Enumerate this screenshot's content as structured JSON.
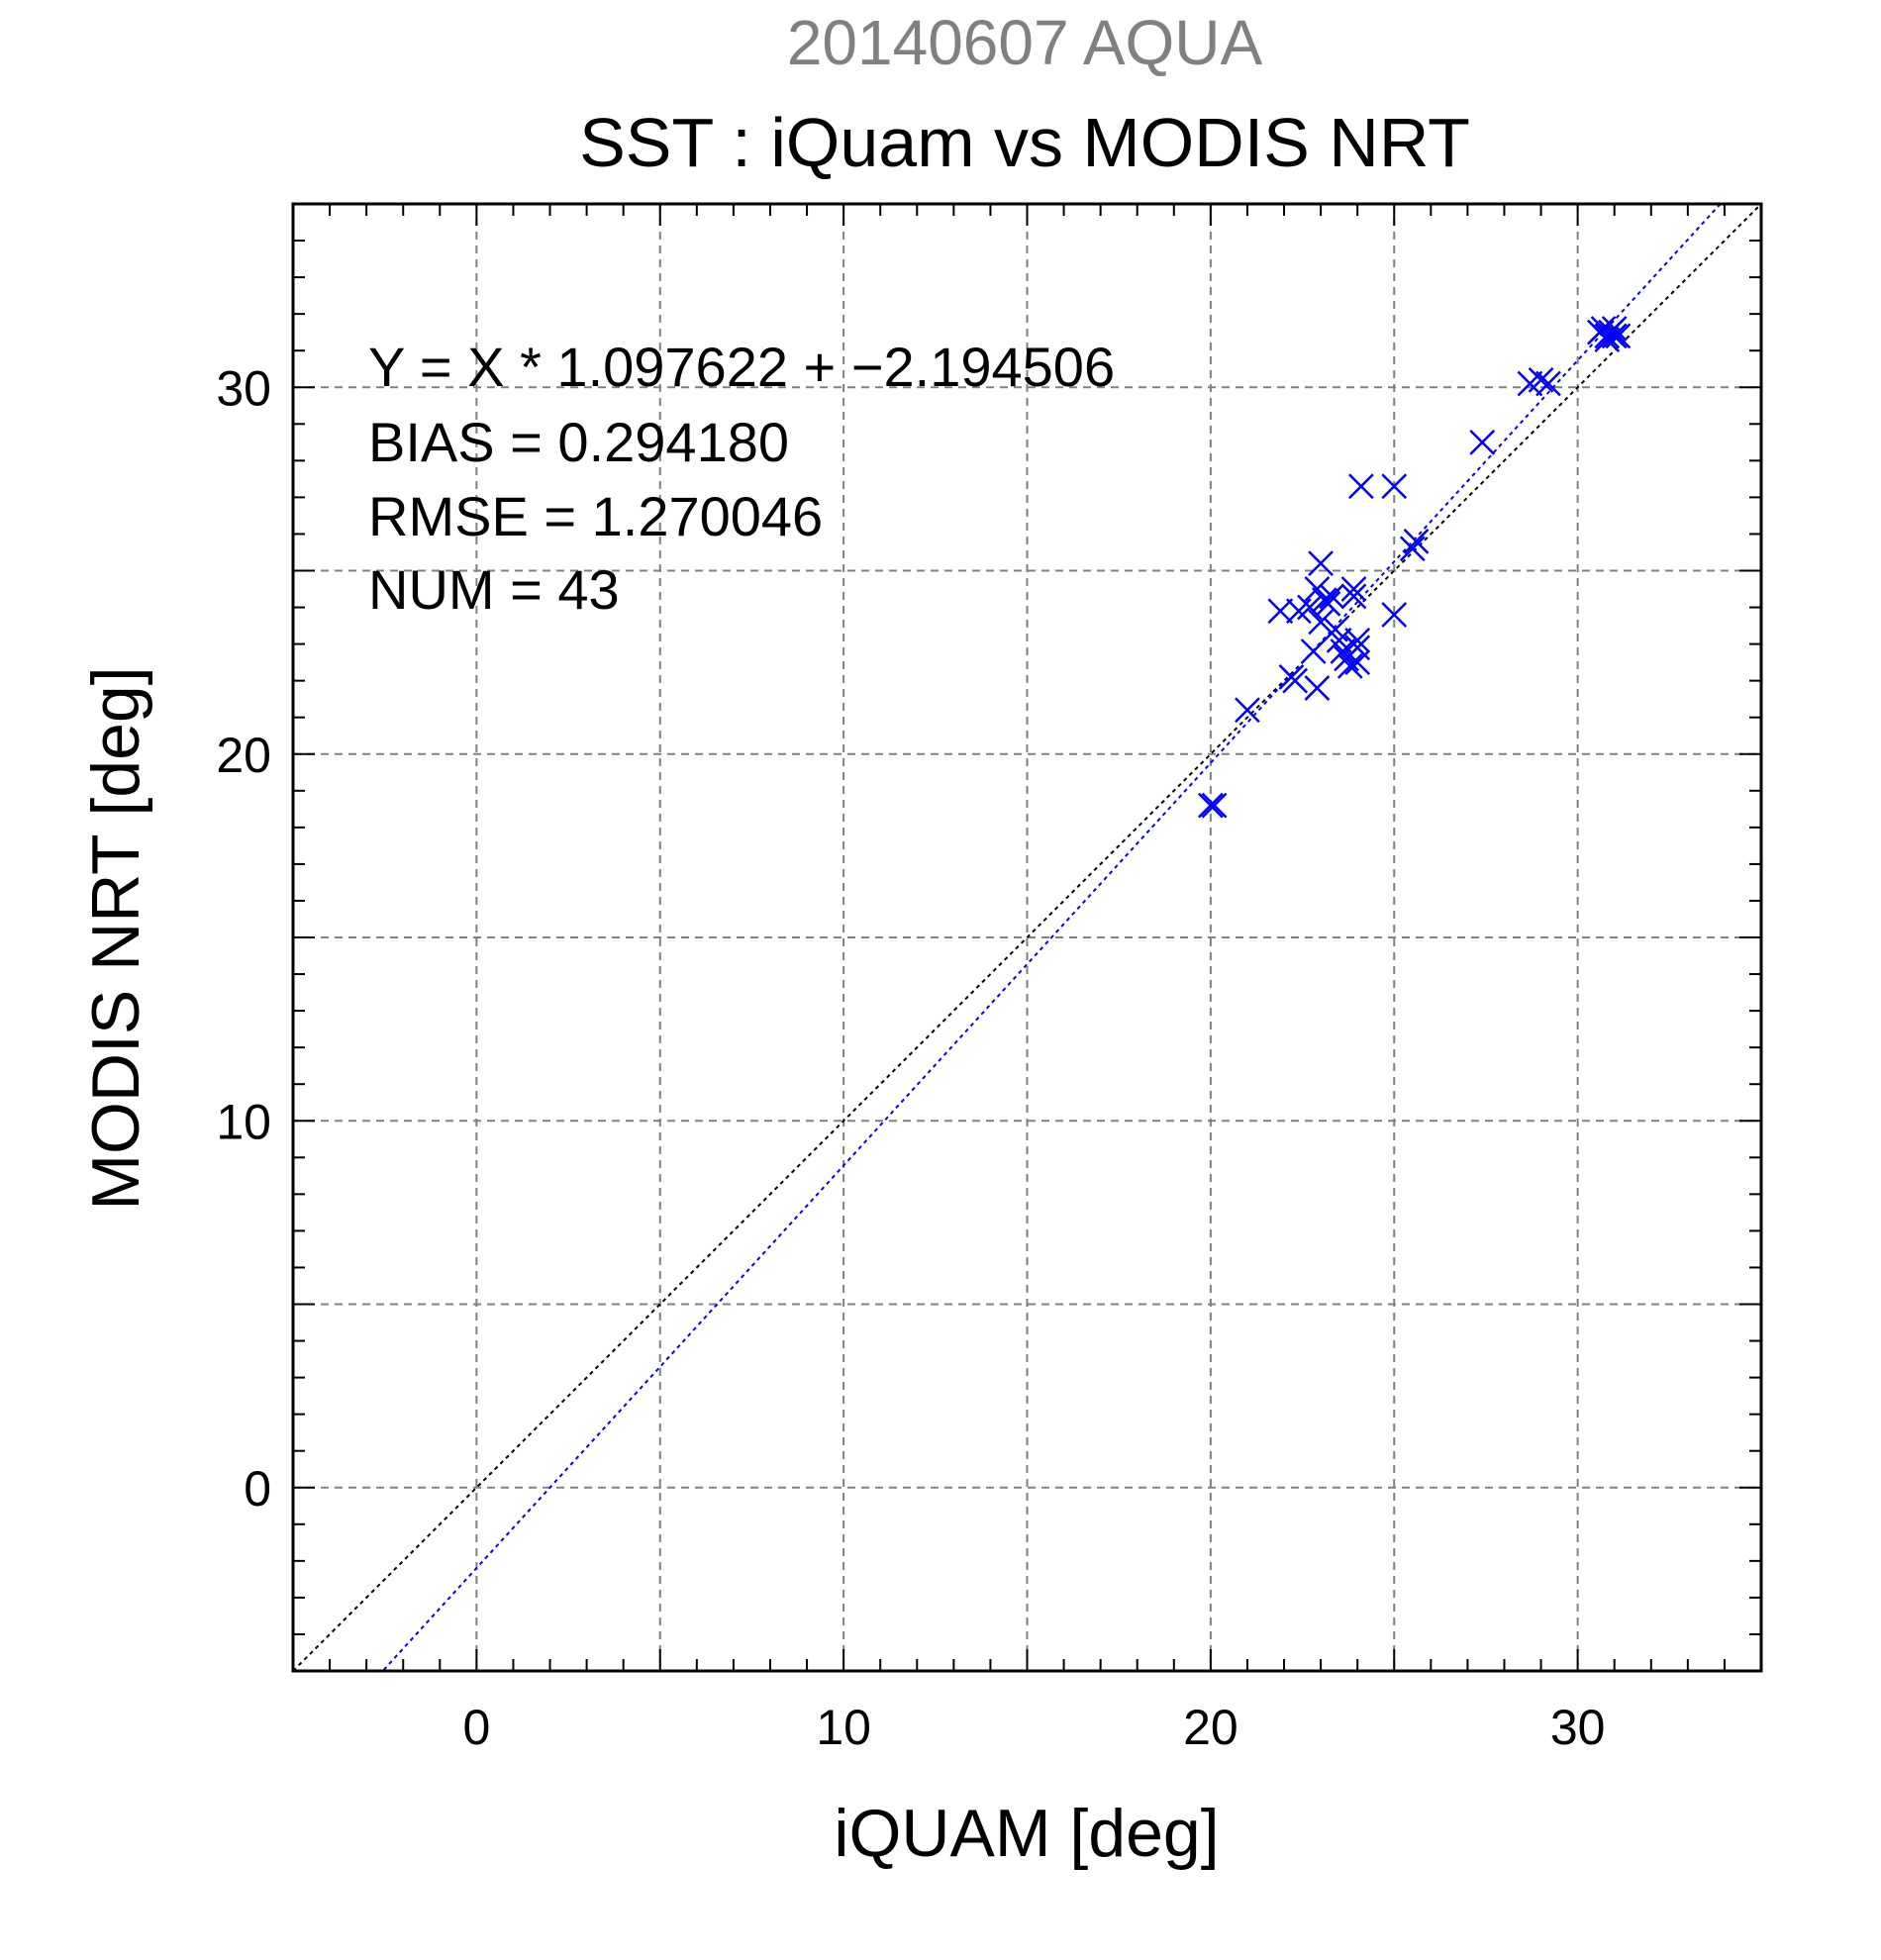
{
  "chart_data": {
    "type": "scatter",
    "top_label": "20140607 AQUA",
    "title": "SST : iQuam vs MODIS NRT",
    "xlabel": "iQUAM [deg]",
    "ylabel": "MODIS NRT [deg]",
    "xlim": [
      -5,
      35
    ],
    "ylim": [
      -5,
      35
    ],
    "major_ticks": [
      0,
      10,
      20,
      30
    ],
    "grid_step": 5,
    "minor_step": 1,
    "grid": true,
    "annotations": [
      "Y = X * 1.097622 + −2.194506",
      "BIAS = 0.294180",
      "RMSE = 1.270046",
      "NUM = 43"
    ],
    "fit": {
      "slope": 1.097622,
      "intercept": -2.194506
    },
    "colors": {
      "points": "#0000ff",
      "fit_line": "#0000ff",
      "identity_line": "#000000",
      "grid": "#808080"
    },
    "series": [
      {
        "marker": "x",
        "x": [
          20.0,
          20.1,
          21.0,
          21.9,
          22.2,
          22.3,
          22.4,
          22.7,
          22.8,
          22.9,
          22.9,
          23.0,
          23.0,
          23.1,
          23.2,
          23.3,
          23.4,
          23.5,
          23.6,
          23.7,
          23.8,
          23.9,
          24.0,
          24.0,
          24.1,
          23.9,
          24.0,
          25.0,
          25.0,
          25.5,
          25.6,
          27.4,
          28.7,
          29.0,
          29.2,
          30.6,
          30.7,
          30.8,
          30.9,
          31.0,
          31.0,
          30.8,
          31.1
        ],
        "y": [
          18.6,
          18.6,
          21.2,
          23.9,
          22.1,
          22.0,
          23.9,
          24.0,
          22.8,
          24.5,
          21.8,
          25.2,
          23.6,
          24.2,
          24.1,
          24.3,
          23.4,
          23.1,
          22.8,
          22.6,
          22.4,
          24.5,
          23.1,
          22.5,
          27.3,
          24.3,
          22.9,
          23.8,
          27.3,
          25.6,
          25.8,
          28.5,
          30.1,
          30.2,
          30.1,
          31.5,
          31.6,
          31.4,
          31.5,
          31.4,
          31.6,
          31.3,
          31.4
        ]
      }
    ]
  }
}
